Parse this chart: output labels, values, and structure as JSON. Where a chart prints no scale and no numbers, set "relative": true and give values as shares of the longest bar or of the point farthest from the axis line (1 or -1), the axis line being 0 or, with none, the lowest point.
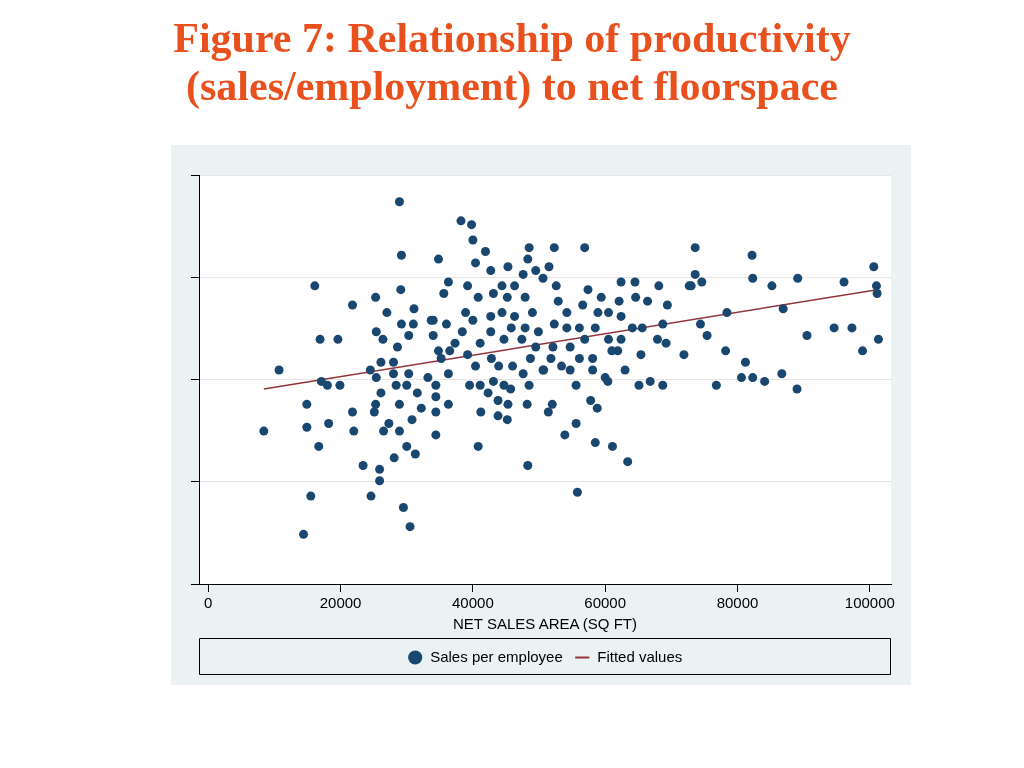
{
  "chart_data": {
    "type": "scatter",
    "title": "Figure 7:  Relationship of productivity (sales/employment) to net floorspace",
    "xlabel": "NET SALES AREA (SQ FT)",
    "relative": true,
    "xlim": [
      -1400,
      103200
    ],
    "xticks": [
      0,
      20000,
      40000,
      60000,
      80000,
      100000
    ],
    "grid": "y",
    "legend": "bottom",
    "marker": "circle",
    "series": [
      {
        "name": "Sales per employee",
        "type": "scatter",
        "color": "#1a476f",
        "x": [
          8400,
          10700,
          16100,
          16900,
          19600,
          17100,
          18000,
          19900,
          14900,
          14900,
          18200,
          16700,
          15500,
          14400,
          21800,
          25300,
          27000,
          29100,
          29200,
          28900,
          21800,
          22000,
          23400,
          25900,
          25900,
          24600,
          29500,
          30500,
          28100,
          31300,
          30000,
          28900,
          26500,
          27300,
          30800,
          25100,
          25300,
          28900,
          26100,
          28400,
          30000,
          32200,
          31600,
          24500,
          25400,
          26100,
          28000,
          30300,
          28000,
          25400,
          26400,
          29200,
          31000,
          28600,
          30300,
          31100,
          34000,
          38200,
          39800,
          40000,
          41900,
          40400,
          34800,
          42700,
          36300,
          35600,
          39200,
          40800,
          43100,
          48500,
          48300,
          52300,
          51500,
          56900,
          45300,
          47600,
          49500,
          50600,
          52600,
          44400,
          46300,
          45200,
          47900,
          52900,
          54200,
          56600,
          57400,
          59400,
          62400,
          64500,
          64600,
          62100,
          66400,
          68100,
          58900,
          60500,
          62400,
          38900,
          40000,
          38400,
          33700,
          36000,
          34000,
          42700,
          44400,
          46300,
          49000,
          45800,
          47900,
          49900,
          52300,
          54200,
          56100,
          58500,
          64100,
          65600,
          67900,
          42700,
          41100,
          44700,
          47400,
          49500,
          52100,
          54700,
          56900,
          60500,
          62400,
          37300,
          34800,
          36500,
          39200,
          35200,
          40400,
          42800,
          43900,
          46000,
          48700,
          50600,
          51800,
          53400,
          54700,
          56100,
          58100,
          58100,
          61000,
          61900,
          63000,
          65400,
          33200,
          34400,
          36300,
          39500,
          41100,
          43100,
          44700,
          45700,
          47600,
          48500,
          50700,
          55600,
          60000,
          60400,
          65100,
          66800,
          34400,
          36300,
          34400,
          41200,
          42300,
          43800,
          43800,
          45200,
          45300,
          48200,
          51400,
          52000,
          57800,
          58800,
          53900,
          55600,
          58500,
          61100,
          63400,
          34400,
          40800,
          48300,
          55800,
          73600,
          73600,
          72700,
          73000,
          74600,
          69400,
          68700,
          69200,
          71900,
          74400,
          75400,
          78400,
          78200,
          76800,
          82200,
          82300,
          85200,
          89100,
          86900,
          90500,
          81200,
          80600,
          82300,
          84100,
          86700,
          89000,
          96100,
          94600,
          97300,
          98900,
          100600,
          101000,
          101100,
          101300,
          68700
        ],
        "values": [
          0.4,
          0.56,
          0.78,
          0.64,
          0.64,
          0.53,
          0.52,
          0.52,
          0.47,
          0.41,
          0.42,
          0.36,
          0.23,
          0.13,
          0.73,
          0.75,
          0.71,
          0.77,
          0.86,
          1.0,
          0.45,
          0.4,
          0.31,
          0.3,
          0.27,
          0.23,
          0.2,
          0.15,
          0.33,
          0.34,
          0.36,
          0.4,
          0.4,
          0.42,
          0.43,
          0.45,
          0.47,
          0.47,
          0.5,
          0.52,
          0.52,
          0.46,
          0.5,
          0.56,
          0.54,
          0.58,
          0.55,
          0.55,
          0.58,
          0.66,
          0.64,
          0.68,
          0.68,
          0.62,
          0.65,
          0.72,
          0.69,
          0.95,
          0.94,
          0.9,
          0.87,
          0.84,
          0.85,
          0.82,
          0.79,
          0.76,
          0.78,
          0.75,
          0.76,
          0.88,
          0.85,
          0.88,
          0.83,
          0.88,
          0.83,
          0.81,
          0.82,
          0.8,
          0.78,
          0.78,
          0.78,
          0.75,
          0.75,
          0.74,
          0.71,
          0.73,
          0.77,
          0.75,
          0.79,
          0.79,
          0.75,
          0.74,
          0.74,
          0.78,
          0.71,
          0.71,
          0.7,
          0.71,
          0.69,
          0.66,
          0.69,
          0.68,
          0.65,
          0.7,
          0.71,
          0.7,
          0.71,
          0.67,
          0.67,
          0.66,
          0.68,
          0.67,
          0.67,
          0.67,
          0.67,
          0.67,
          0.64,
          0.66,
          0.63,
          0.64,
          0.64,
          0.62,
          0.62,
          0.62,
          0.64,
          0.64,
          0.64,
          0.63,
          0.61,
          0.61,
          0.6,
          0.59,
          0.57,
          0.59,
          0.57,
          0.57,
          0.59,
          0.56,
          0.59,
          0.57,
          0.56,
          0.59,
          0.59,
          0.56,
          0.61,
          0.61,
          0.56,
          0.6,
          0.54,
          0.52,
          0.55,
          0.52,
          0.52,
          0.53,
          0.52,
          0.51,
          0.55,
          0.52,
          0.56,
          0.52,
          0.54,
          0.53,
          0.52,
          0.53,
          0.49,
          0.47,
          0.45,
          0.45,
          0.5,
          0.48,
          0.44,
          0.43,
          0.47,
          0.47,
          0.45,
          0.47,
          0.48,
          0.46,
          0.39,
          0.42,
          0.37,
          0.36,
          0.32,
          0.39,
          0.36,
          0.31,
          0.24,
          0.88,
          0.81,
          0.78,
          0.78,
          0.79,
          0.73,
          0.68,
          0.63,
          0.6,
          0.68,
          0.65,
          0.71,
          0.61,
          0.52,
          0.86,
          0.8,
          0.78,
          0.8,
          0.72,
          0.65,
          0.58,
          0.54,
          0.54,
          0.53,
          0.55,
          0.51,
          0.79,
          0.67,
          0.67,
          0.61,
          0.83,
          0.78,
          0.76,
          0.64,
          0.52
        ]
      },
      {
        "name": "Fitted values",
        "type": "line",
        "color": "#90353b",
        "marker": "none",
        "x": [
          8400,
          101100
        ],
        "values": [
          0.51,
          0.77
        ]
      }
    ]
  }
}
